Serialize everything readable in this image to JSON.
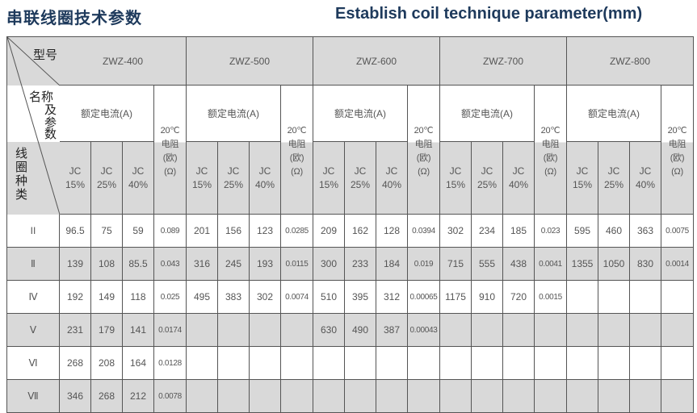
{
  "title_cn": "串联线圈技术参数",
  "title_en": "Establish coil technique parameter(mm)",
  "corner": {
    "model": "型号",
    "name_params_1": "名称",
    "name_params_2": "及",
    "name_params_3": "参",
    "name_params_4": "数",
    "coil_type": [
      "线",
      "圈",
      "种",
      "类"
    ]
  },
  "models": [
    "ZWZ-400",
    "ZWZ-500",
    "ZWZ-600",
    "ZWZ-700",
    "ZWZ-800"
  ],
  "rated_current": "额定电流(A)",
  "resistance_header": [
    "20℃",
    "电阻",
    "(欧)",
    "(Ω)"
  ],
  "jc": [
    "JC",
    "15%",
    "25%",
    "40%"
  ],
  "colors": {
    "title": "#1e3a5c",
    "shade": "#d9d9d9",
    "border": "#555555"
  },
  "rows": [
    {
      "type": "II",
      "values": [
        "96.5",
        "75",
        "59",
        "0.089",
        "201",
        "156",
        "123",
        "0.0285",
        "209",
        "162",
        "128",
        "0.0394",
        "302",
        "234",
        "185",
        "0.023",
        "595",
        "460",
        "363",
        "0.0075"
      ]
    },
    {
      "type": "Ⅱ",
      "values": [
        "139",
        "108",
        "85.5",
        "0.043",
        "316",
        "245",
        "193",
        "0.0115",
        "300",
        "233",
        "184",
        "0.019",
        "715",
        "555",
        "438",
        "0.0041",
        "1355",
        "1050",
        "830",
        "0.0014"
      ]
    },
    {
      "type": "Ⅳ",
      "values": [
        "192",
        "149",
        "118",
        "0.025",
        "495",
        "383",
        "302",
        "0.0074",
        "510",
        "395",
        "312",
        "0.00065",
        "1175",
        "910",
        "720",
        "0.0015",
        "",
        "",
        "",
        ""
      ]
    },
    {
      "type": "Ⅴ",
      "values": [
        "231",
        "179",
        "141",
        "0.0174",
        "",
        "",
        "",
        "",
        "630",
        "490",
        "387",
        "0.00043",
        "",
        "",
        "",
        "",
        "",
        "",
        "",
        ""
      ]
    },
    {
      "type": "Ⅵ",
      "values": [
        "268",
        "208",
        "164",
        "0.0128",
        "",
        "",
        "",
        "",
        "",
        "",
        "",
        "",
        "",
        "",
        "",
        "",
        "",
        "",
        "",
        ""
      ]
    },
    {
      "type": "Ⅶ",
      "values": [
        "346",
        "268",
        "212",
        "0.0078",
        "",
        "",
        "",
        "",
        "",
        "",
        "",
        "",
        "",
        "",
        "",
        "",
        "",
        "",
        "",
        ""
      ]
    }
  ]
}
